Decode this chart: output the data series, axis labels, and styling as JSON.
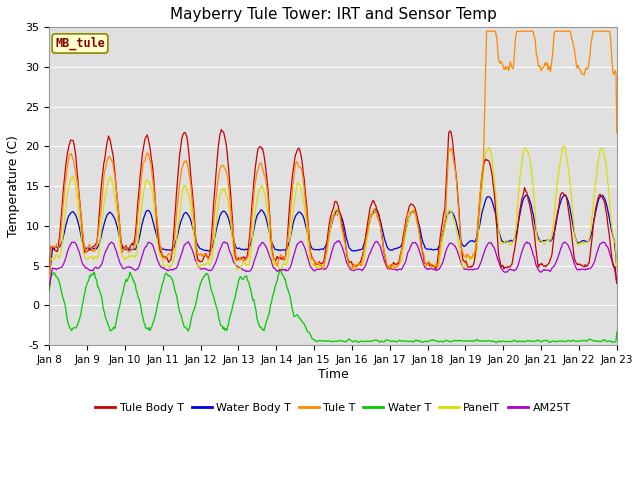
{
  "title": "Mayberry Tule Tower: IRT and Sensor Temp",
  "xlabel": "Time",
  "ylabel": "Temperature (C)",
  "ylim": [
    -5,
    35
  ],
  "x_tick_labels": [
    "Jan 8",
    "Jan 9",
    "Jan 10",
    "Jan 11",
    "Jan 12",
    "Jan 13",
    "Jan 14",
    "Jan 15",
    "Jan 16",
    "Jan 17",
    "Jan 18",
    "Jan 19",
    "Jan 20",
    "Jan 21",
    "Jan 22",
    "Jan 23"
  ],
  "label_box_text": "MB_tule",
  "legend_entries": [
    "Tule Body T",
    "Water Body T",
    "Tule T",
    "Water T",
    "PanelT",
    "AM25T"
  ],
  "colors": {
    "tule_body": "#cc0000",
    "water_body": "#0000dd",
    "tule_t": "#ff8800",
    "water_t": "#00cc00",
    "panel_t": "#dddd00",
    "am25t": "#aa00cc"
  },
  "plot_bg": "#e0e0e0",
  "title_fontsize": 11,
  "n_days": 15,
  "pts_per_day": 48
}
